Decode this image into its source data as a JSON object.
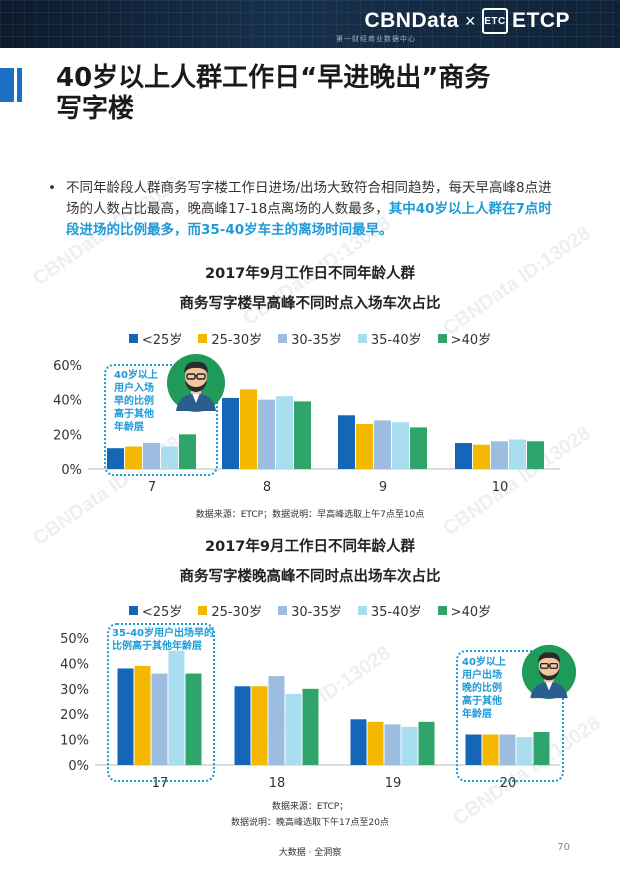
{
  "header": {
    "brand_main": "CBNData",
    "brand_x": "×",
    "brand_partner_logo": "ETC",
    "brand_partner": "ETCP",
    "brand_sub": "第一财经商业数据中心"
  },
  "page": {
    "title_line1": "40岁以上人群工作日“早进晚出”商务",
    "title_line2": "写字楼",
    "bullet_marker": "•",
    "bullet_plain": "不同年龄段人群商务写字楼工作日进场/出场大致符合相同趋势，每天早高峰8点进场的人数占比最高，晚高峰17-18点离场的人数最多，",
    "bullet_highlight": "其中40岁以上人群在7点时段进场的比例最多，而35-40岁车主的离场时间最早。",
    "footer": "大数据 · 全洞察",
    "page_number": "70",
    "watermark": "CBNData ID:13028"
  },
  "colors": {
    "lt25": "#1565b8",
    "age25_30": "#f5b800",
    "age30_35": "#9dbde0",
    "age35_40": "#a8def0",
    "gt40": "#2fa56b",
    "accent": "#1e9ad6"
  },
  "chart_data": [
    {
      "type": "bar",
      "title_line1": "2017年9月工作日不同年龄人群",
      "title_line2": "商务写字楼早高峰不同时点入场车次占比",
      "categories": [
        "7",
        "8",
        "9",
        "10"
      ],
      "series": [
        {
          "name": "<25岁",
          "values": [
            12,
            41,
            31,
            15
          ]
        },
        {
          "name": "25-30岁",
          "values": [
            13,
            46,
            26,
            14
          ]
        },
        {
          "name": "30-35岁",
          "values": [
            15,
            40,
            28,
            16
          ]
        },
        {
          "name": "35-40岁",
          "values": [
            13,
            42,
            27,
            17
          ]
        },
        {
          "name": ">40岁",
          "values": [
            20,
            39,
            24,
            16
          ]
        }
      ],
      "yticks": [
        "0%",
        "20%",
        "40%",
        "60%"
      ],
      "ylim": [
        0,
        60
      ],
      "grid": false,
      "legend": "top",
      "source": "数据来源：ETCP；数据说明：早高峰选取上午7点至10点",
      "callout": [
        "40岁以上",
        "用户入场",
        "早的比例",
        "高于其他",
        "年龄层"
      ]
    },
    {
      "type": "bar",
      "title_line1": "2017年9月工作日不同年龄人群",
      "title_line2": "商务写字楼晚高峰不同时点出场车次占比",
      "categories": [
        "17",
        "18",
        "19",
        "20"
      ],
      "series": [
        {
          "name": "<25岁",
          "values": [
            38,
            31,
            18,
            12
          ]
        },
        {
          "name": "25-30岁",
          "values": [
            39,
            31,
            17,
            12
          ]
        },
        {
          "name": "30-35岁",
          "values": [
            36,
            35,
            16,
            12
          ]
        },
        {
          "name": "35-40岁",
          "values": [
            45,
            28,
            15,
            11
          ]
        },
        {
          "name": ">40岁",
          "values": [
            36,
            30,
            17,
            13
          ]
        }
      ],
      "yticks": [
        "0%",
        "10%",
        "20%",
        "30%",
        "40%",
        "50%"
      ],
      "ylim": [
        0,
        50
      ],
      "grid": false,
      "legend": "top",
      "source_line1": "数据来源：ETCP；",
      "source_line2": "数据说明：晚高峰选取下午17点至20点",
      "callout_left": [
        "35-40岁用户出场早的",
        "比例高于其他年龄层"
      ],
      "callout_right": [
        "40岁以上",
        "用户出场",
        "晚的比例",
        "高于其他",
        "年龄层"
      ]
    }
  ]
}
